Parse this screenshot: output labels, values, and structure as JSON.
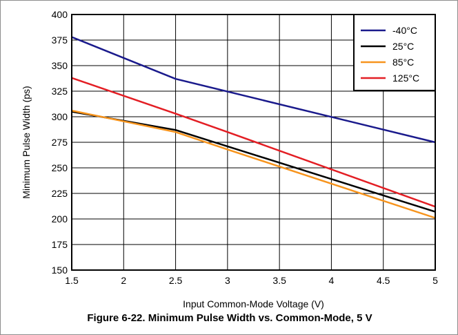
{
  "chart_data": {
    "type": "line",
    "caption": "Figure 6-22. Minimum Pulse Width vs. Common-Mode, 5 V",
    "xlabel": "Input Common-Mode Voltage (V)",
    "ylabel": "Minimum Pulse Width (ps)",
    "xlim": [
      1.5,
      5
    ],
    "ylim": [
      150,
      400
    ],
    "xticks": [
      "1.5",
      "2",
      "2.5",
      "3",
      "3.5",
      "4",
      "4.5",
      "5"
    ],
    "yticks": [
      "150",
      "175",
      "200",
      "225",
      "250",
      "275",
      "300",
      "325",
      "350",
      "375",
      "400"
    ],
    "grid": true,
    "legend_position": "top-right",
    "series": [
      {
        "name": "-40°C",
        "color": "#1a1a8c",
        "x": [
          1.5,
          2.5,
          5
        ],
        "values": [
          378,
          337,
          275
        ]
      },
      {
        "name": "25°C",
        "color": "#000000",
        "x": [
          1.5,
          2.5,
          3,
          5
        ],
        "values": [
          305,
          287,
          271,
          207
        ]
      },
      {
        "name": "85°C",
        "color": "#f7941d",
        "x": [
          1.5,
          2.5,
          3,
          5
        ],
        "values": [
          306,
          285,
          268,
          201
        ]
      },
      {
        "name": "125°C",
        "color": "#e31e24",
        "x": [
          1.5,
          2.5,
          3,
          5
        ],
        "values": [
          338,
          303,
          285,
          212
        ]
      }
    ]
  }
}
